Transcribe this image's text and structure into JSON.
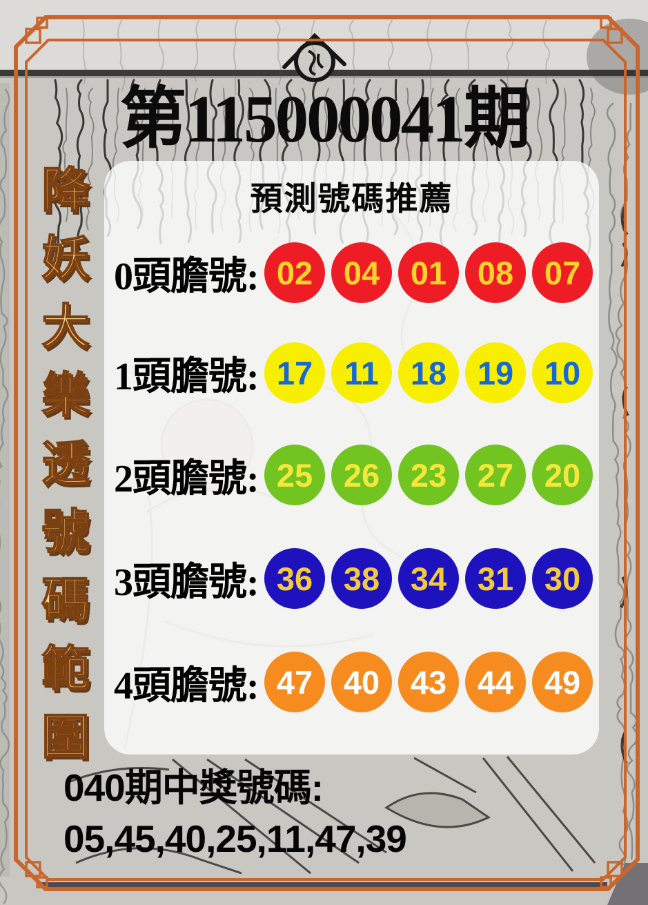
{
  "title": "第115000041期",
  "sidebar": {
    "vertical_text": "降妖大樂透號碼範圍",
    "chars": [
      "降",
      "妖",
      "大",
      "樂",
      "透",
      "號",
      "碼",
      "範",
      "圍"
    ]
  },
  "panel": {
    "heading": "預測號碼推薦",
    "rows": [
      {
        "label": "0頭膽號:",
        "numbers": [
          "02",
          "04",
          "01",
          "08",
          "07"
        ],
        "ball_color": "#ee1c25",
        "number_color": "#ffd42a"
      },
      {
        "label": "1頭膽號:",
        "numbers": [
          "17",
          "11",
          "18",
          "19",
          "10"
        ],
        "ball_color": "#f8ee00",
        "number_color": "#1668d8"
      },
      {
        "label": "2頭膽號:",
        "numbers": [
          "25",
          "26",
          "23",
          "27",
          "20"
        ],
        "ball_color": "#72c420",
        "number_color": "#f5e73c"
      },
      {
        "label": "3頭膽號:",
        "numbers": [
          "36",
          "38",
          "34",
          "31",
          "30"
        ],
        "ball_color": "#1d12bd",
        "number_color": "#f2ca3b"
      },
      {
        "label": "4頭膽號:",
        "numbers": [
          "47",
          "40",
          "43",
          "44",
          "49"
        ],
        "ball_color": "#f68b1f",
        "number_color": "#ffffff"
      }
    ]
  },
  "footer": {
    "line1": "040期中獎號碼:",
    "line2": "05,45,40,25,11,47,39"
  },
  "colors": {
    "frame": "#c8662e",
    "gold_top": "#fffdee",
    "gold_mid": "#fbd98e",
    "gold_bottom": "#f4a93c",
    "gold_outline": "#7c3f10",
    "panel_bg": "rgba(255,255,255,0.78)"
  }
}
